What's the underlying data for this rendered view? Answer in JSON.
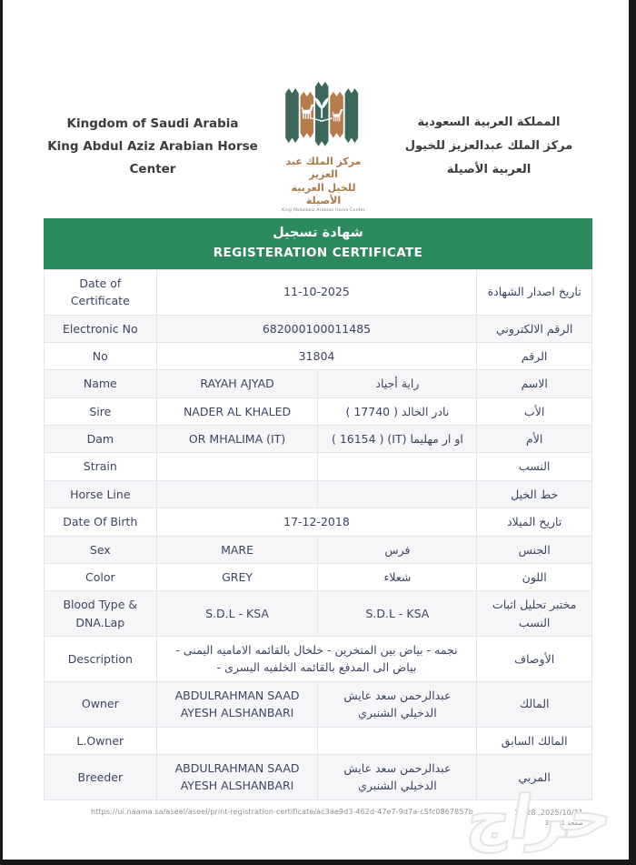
{
  "header": {
    "left_line1": "Kingdom of Saudi Arabia",
    "left_line2": "King Abdul Aziz Arabian Horse Center",
    "right_line1": "المملكة العربية السعودية",
    "right_line2": "مركز الملك عبدالعزيز للخيول العربية الأصيلة",
    "logo": {
      "arabic_line1": "مركز الملك عبد العزيز",
      "arabic_line2": "للخيل العربية الأصيلة",
      "english_caption": "King Abdulaziz Arabian Horse Center",
      "green": "#3b685a",
      "brown": "#b77c4c"
    }
  },
  "banner": {
    "title_ar": "شهادة تسجيل",
    "title_en": "REGISTERATION CERTIFICATE",
    "bg": "#2b8a5c"
  },
  "table": {
    "rows": [
      {
        "label_en": "Date of Certificate",
        "value_en": "11-10-2025",
        "value_ar": "",
        "label_ar": "تاريخ اصدار الشهادة",
        "span": true
      },
      {
        "label_en": "Electronic No",
        "value_en": "682000100011485",
        "value_ar": "",
        "label_ar": "الرقم الالكتروني",
        "span": true
      },
      {
        "label_en": "No",
        "value_en": "31804",
        "value_ar": "",
        "label_ar": "الرقم",
        "span": true
      },
      {
        "label_en": "Name",
        "value_en": "RAYAH AJYAD",
        "value_ar": "راية أجياد",
        "label_ar": "الاسم",
        "span": false
      },
      {
        "label_en": "Sire",
        "value_en": "NADER AL KHALED",
        "value_ar": "نادر الخالد ( 17740 )",
        "label_ar": "الأب",
        "span": false
      },
      {
        "label_en": "Dam",
        "value_en": "OR MHALIMA (IT)",
        "value_ar": "او ار مهليما (IT) ( 16154 )",
        "label_ar": "الأم",
        "span": false
      },
      {
        "label_en": "Strain",
        "value_en": "",
        "value_ar": "",
        "label_ar": "النسب",
        "span": false
      },
      {
        "label_en": "Horse Line",
        "value_en": "",
        "value_ar": "",
        "label_ar": "خط الخيل",
        "span": false
      },
      {
        "label_en": "Date Of Birth",
        "value_en": "17-12-2018",
        "value_ar": "",
        "label_ar": "تاريخ الميلاد",
        "span": true
      },
      {
        "label_en": "Sex",
        "value_en": "MARE",
        "value_ar": "فرس",
        "label_ar": "الجنس",
        "span": false
      },
      {
        "label_en": "Color",
        "value_en": "GREY",
        "value_ar": "شعلاء",
        "label_ar": "اللون",
        "span": false
      },
      {
        "label_en": "Blood Type & DNA.Lap",
        "value_en": "S.D.L - KSA",
        "value_ar": "S.D.L - KSA",
        "label_ar": "مختبر تحليل اثبات النسب",
        "span": false
      },
      {
        "label_en": "Description",
        "value_en": "",
        "value_ar": "نجمه - بياض بين المنخرين - خلخال بالقائمه الاماميه اليمنى - بياض الى المدفع بالقائمه الخلفيه اليسرى -",
        "label_ar": "الأوصاف",
        "span": true
      },
      {
        "label_en": "Owner",
        "value_en": "ABDULRAHMAN SAAD AYESH ALSHANBARI",
        "value_ar": "عبدالرحمن سعد عايش الدخيلي الشنبري",
        "label_ar": "المالك",
        "span": false
      },
      {
        "label_en": "L.Owner",
        "value_en": "",
        "value_ar": "",
        "label_ar": "المالك السابق",
        "span": false
      },
      {
        "label_en": "Breeder",
        "value_en": "ABDULRAHMAN SAAD AYESH ALSHANBARI",
        "value_ar": "عبدالرحمن سعد عايش الدخيلي الشنبري",
        "label_ar": "المربي",
        "span": false
      }
    ]
  },
  "footer": {
    "url": "https://ui.naama.sa/aseel/aseel/print-registration-certificate/ac3ae9d3-462d-47e7-9d7a-c5fc0867857b",
    "timestamp": "12:28 ,2025/10/11",
    "page_info": "صفحة 1 من 3",
    "watermark": "حراج"
  }
}
